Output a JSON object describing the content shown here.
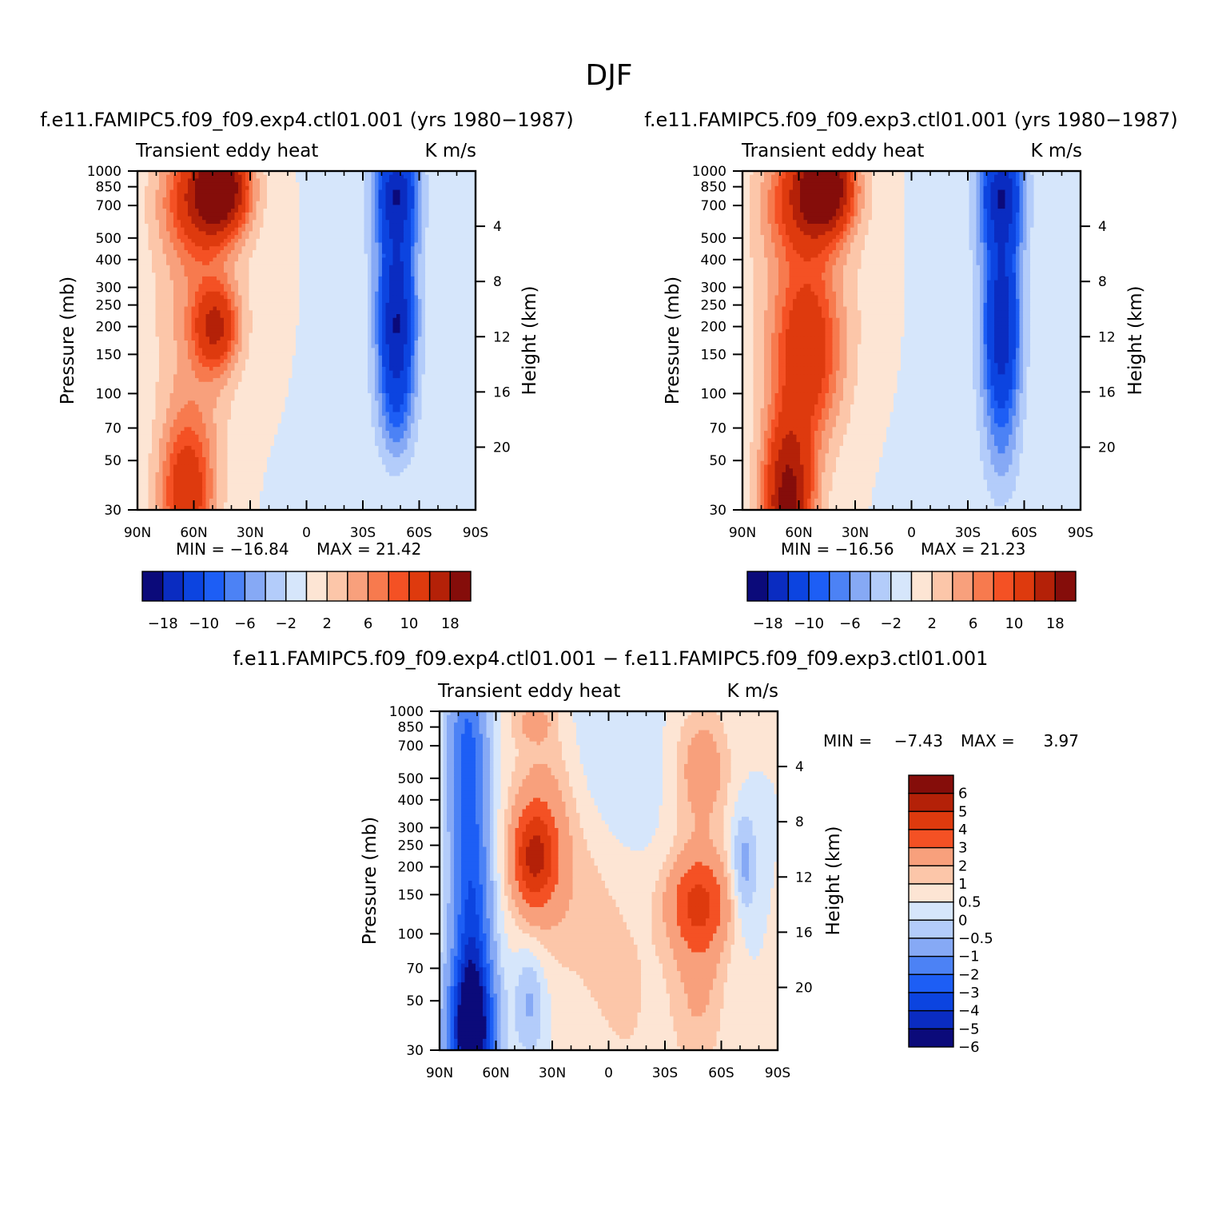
{
  "page_title": "DJF",
  "chart_data": [
    {
      "type": "heatmap",
      "subtitle": "f.e11.FAMIPC5.f09_f09.exp4.ctl01.001 (yrs 1980-1987)",
      "left_title": "Transient eddy heat",
      "right_title": "K m/s",
      "xlabel": "",
      "ylabel": "Pressure (mb)",
      "y2label": "Height (km)",
      "x_ticks": [
        "90N",
        "60N",
        "30N",
        "0",
        "30S",
        "60S",
        "90S"
      ],
      "y_ticks": [
        30,
        50,
        70,
        100,
        150,
        200,
        250,
        300,
        400,
        500,
        700,
        850,
        1000
      ],
      "y2_ticks": [
        4,
        8,
        12,
        16,
        20
      ],
      "x_range": [
        90,
        -90
      ],
      "y_range": [
        1000,
        30
      ],
      "y_scale": "log",
      "min_label": "MIN = -16.84",
      "max_label": "MAX = 21.42",
      "colorbar_labels": [
        "-18",
        "-10",
        "-6",
        "-2",
        "2",
        "6",
        "10",
        "18"
      ],
      "colorbar_colors": [
        "#0b0a7a",
        "#0a2cc1",
        "#0c44e0",
        "#1d5ef5",
        "#4c82f5",
        "#86a9f5",
        "#b3ccfa",
        "#d6e6fb",
        "#fde5d4",
        "#fcc6a9",
        "#f8a07c",
        "#f77a4e",
        "#f45124",
        "#de3a0e",
        "#b42108",
        "#850d0a"
      ],
      "features": [
        {
          "lat": 64,
          "p": 35,
          "value": 12,
          "sx": 10,
          "sy": 0.55
        },
        {
          "lat": 48,
          "p": 200,
          "value": 12,
          "sx": 8,
          "sy": 0.3
        },
        {
          "lat": 58,
          "p": 250,
          "value": 5,
          "sx": 16,
          "sy": 1.2
        },
        {
          "lat": 45,
          "p": 850,
          "value": 19,
          "sx": 10,
          "sy": 0.32
        },
        {
          "lat": 58,
          "p": 750,
          "value": 9,
          "sx": 14,
          "sy": 0.4
        },
        {
          "lat": 15,
          "p": 300,
          "value": 1.2,
          "sx": 12,
          "sy": 1.0
        },
        {
          "lat": -48,
          "p": 200,
          "value": -17,
          "sx": 7,
          "sy": 0.55
        },
        {
          "lat": -48,
          "p": 850,
          "value": -14,
          "sx": 8,
          "sy": 0.32
        },
        {
          "lat": -48,
          "p": 500,
          "value": -7,
          "sx": 8,
          "sy": 0.4
        },
        {
          "lat": -48,
          "p": 80,
          "value": -5,
          "sx": 7,
          "sy": 0.4
        },
        {
          "lat": -10,
          "p": 200,
          "value": -0.9,
          "sx": 30,
          "sy": 1.5
        }
      ]
    },
    {
      "type": "heatmap",
      "subtitle": "f.e11.FAMIPC5.f09_f09.exp3.ctl01.001 (yrs 1980-1987)",
      "left_title": "Transient eddy heat",
      "right_title": "K m/s",
      "xlabel": "",
      "ylabel": "Pressure (mb)",
      "y2label": "Height (km)",
      "x_ticks": [
        "90N",
        "60N",
        "30N",
        "0",
        "30S",
        "60S",
        "90S"
      ],
      "y_ticks": [
        30,
        50,
        70,
        100,
        150,
        200,
        250,
        300,
        400,
        500,
        700,
        850,
        1000
      ],
      "y2_ticks": [
        4,
        8,
        12,
        16,
        20
      ],
      "x_range": [
        90,
        -90
      ],
      "y_range": [
        1000,
        30
      ],
      "y_scale": "log",
      "min_label": "MIN = -16.56",
      "max_label": "MAX = 21.23",
      "colorbar_labels": [
        "-18",
        "-10",
        "-6",
        "-2",
        "2",
        "6",
        "10",
        "18"
      ],
      "colorbar_colors": [
        "#0b0a7a",
        "#0a2cc1",
        "#0c44e0",
        "#1d5ef5",
        "#4c82f5",
        "#86a9f5",
        "#b3ccfa",
        "#d6e6fb",
        "#fde5d4",
        "#fcc6a9",
        "#f8a07c",
        "#f77a4e",
        "#f45124",
        "#de3a0e",
        "#b42108",
        "#850d0a"
      ],
      "features": [
        {
          "lat": 66,
          "p": 32,
          "value": 19,
          "sx": 9,
          "sy": 0.6
        },
        {
          "lat": 55,
          "p": 150,
          "value": 9,
          "sx": 12,
          "sy": 0.6
        },
        {
          "lat": 58,
          "p": 250,
          "value": 5,
          "sx": 18,
          "sy": 1.2
        },
        {
          "lat": 45,
          "p": 850,
          "value": 19,
          "sx": 10,
          "sy": 0.32
        },
        {
          "lat": 58,
          "p": 750,
          "value": 9,
          "sx": 14,
          "sy": 0.4
        },
        {
          "lat": 15,
          "p": 300,
          "value": 1.2,
          "sx": 12,
          "sy": 1.0
        },
        {
          "lat": -48,
          "p": 190,
          "value": -16,
          "sx": 7,
          "sy": 0.6
        },
        {
          "lat": -48,
          "p": 850,
          "value": -14,
          "sx": 8,
          "sy": 0.32
        },
        {
          "lat": -48,
          "p": 500,
          "value": -7,
          "sx": 8,
          "sy": 0.4
        },
        {
          "lat": -48,
          "p": 60,
          "value": -4,
          "sx": 7,
          "sy": 0.5
        },
        {
          "lat": -10,
          "p": 200,
          "value": -0.9,
          "sx": 30,
          "sy": 1.5
        }
      ]
    },
    {
      "type": "heatmap",
      "subtitle": "f.e11.FAMIPC5.f09_f09.exp4.ctl01.001 - f.e11.FAMIPC5.f09_f09.exp3.ctl01.001",
      "left_title": "Transient eddy heat",
      "right_title": "K m/s",
      "xlabel": "",
      "ylabel": "Pressure (mb)",
      "y2label": "Height (km)",
      "x_ticks": [
        "90N",
        "60N",
        "30N",
        "0",
        "30S",
        "60S",
        "90S"
      ],
      "y_ticks": [
        30,
        50,
        70,
        100,
        150,
        200,
        250,
        300,
        400,
        500,
        700,
        850,
        1000
      ],
      "y2_ticks": [
        4,
        8,
        12,
        16,
        20
      ],
      "x_range": [
        90,
        -90
      ],
      "y_range": [
        1000,
        30
      ],
      "y_scale": "log",
      "min_label": "MIN =",
      "min_value": "-7.43",
      "max_label": "MAX =",
      "max_value": "3.97",
      "colorbar_labels": [
        "6",
        "5",
        "4",
        "3",
        "2",
        "1",
        "0.5",
        "0",
        "-0.5",
        "-1",
        "-2",
        "-3",
        "-4",
        "-5",
        "-6"
      ],
      "colorbar_colors": [
        "#850d0a",
        "#b42108",
        "#de3a0e",
        "#f45124",
        "#f8a07c",
        "#fcc6a9",
        "#fde5d4",
        "#d6e6fb",
        "#b3ccfa",
        "#86a9f5",
        "#4c82f5",
        "#1d5ef5",
        "#0c44e0",
        "#0a2cc1",
        "#0b0a7a"
      ],
      "features": [
        {
          "lat": 73,
          "p": 35,
          "value": -7,
          "sx": 8,
          "sy": 0.5
        },
        {
          "lat": 73,
          "p": 100,
          "value": -4,
          "sx": 7,
          "sy": 0.9
        },
        {
          "lat": 75,
          "p": 700,
          "value": -3,
          "sx": 7,
          "sy": 0.8
        },
        {
          "lat": 40,
          "p": 220,
          "value": 3.2,
          "sx": 8,
          "sy": 0.35
        },
        {
          "lat": 35,
          "p": 280,
          "value": 1.5,
          "sx": 12,
          "sy": 0.8
        },
        {
          "lat": 42,
          "p": 50,
          "value": -1.2,
          "sx": 6,
          "sy": 0.4
        },
        {
          "lat": -48,
          "p": 140,
          "value": 2.6,
          "sx": 12,
          "sy": 0.35
        },
        {
          "lat": -48,
          "p": 70,
          "value": 1.2,
          "sx": 10,
          "sy": 0.8
        },
        {
          "lat": -50,
          "p": 550,
          "value": 1.5,
          "sx": 10,
          "sy": 0.45
        },
        {
          "lat": 10,
          "p": 150,
          "value": 0.8,
          "sx": 14,
          "sy": 0.8
        },
        {
          "lat": 0,
          "p": 400,
          "value": -0.6,
          "sx": 18,
          "sy": 1.2
        },
        {
          "lat": -72,
          "p": 200,
          "value": -1.4,
          "sx": 5,
          "sy": 0.4
        },
        {
          "lat": 40,
          "p": 900,
          "value": 1.0,
          "sx": 8,
          "sy": 0.15
        },
        {
          "lat": -10,
          "p": 60,
          "value": 0.6,
          "sx": 15,
          "sy": 1.0
        }
      ]
    }
  ]
}
